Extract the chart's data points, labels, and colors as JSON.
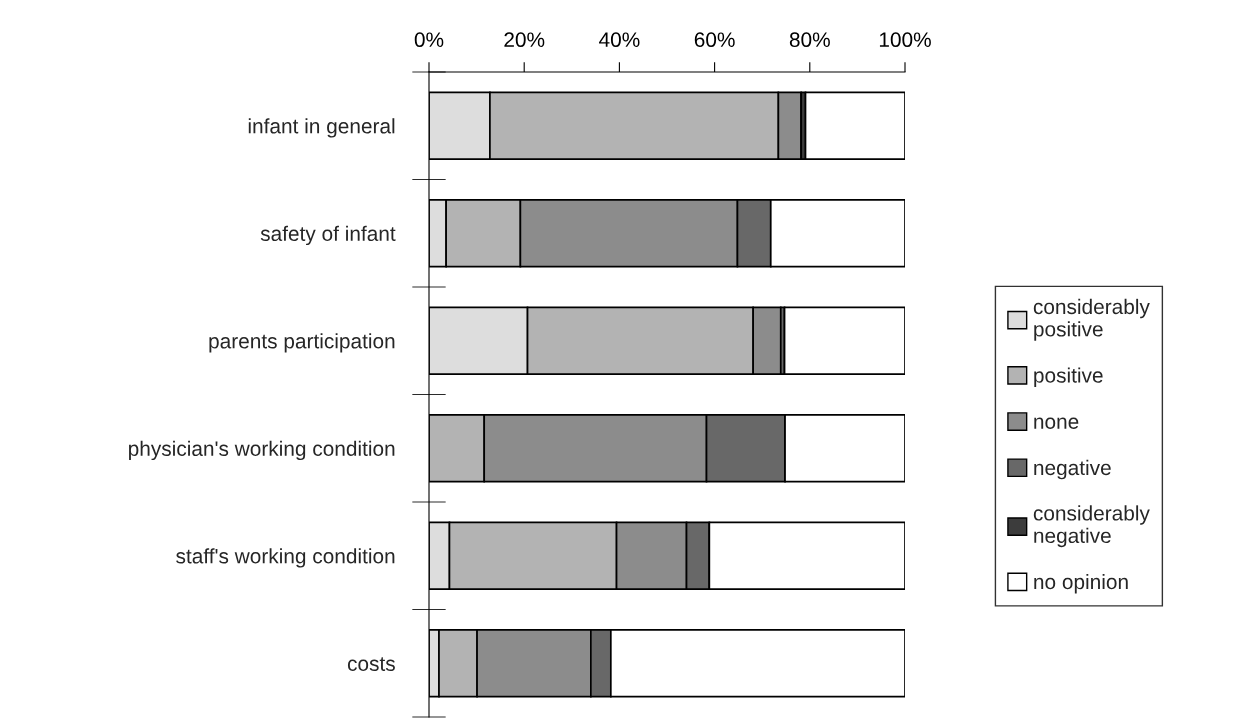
{
  "chart_data": {
    "type": "bar",
    "orientation": "horizontal",
    "stacked": true,
    "categories": [
      "infant in general",
      "safety of infant",
      "parents participation",
      "physician's working condition",
      "staff's working condition",
      "costs"
    ],
    "series": [
      {
        "name": "considerably\npositive",
        "color": "#dddddd",
        "values": [
          12.8,
          3.6,
          20.7,
          0,
          4.3,
          2.1
        ]
      },
      {
        "name": "positive",
        "color": "#b3b3b3",
        "values": [
          60.6,
          15.6,
          47.4,
          11.6,
          35.1,
          8.0
        ]
      },
      {
        "name": "none",
        "color": "#8c8c8c",
        "values": [
          4.8,
          45.6,
          5.8,
          46.7,
          14.7,
          23.9
        ]
      },
      {
        "name": "negative",
        "color": "#686868",
        "values": [
          0,
          7.0,
          0.8,
          16.5,
          4.8,
          4.2
        ]
      },
      {
        "name": "considerably\nnegative",
        "color": "#3c3c3c",
        "values": [
          0.9,
          0,
          0,
          0,
          0,
          0
        ]
      },
      {
        "name": "no opinion",
        "color": "#ffffff",
        "values": [
          20.9,
          28.2,
          25.3,
          25.2,
          41.1,
          61.8
        ]
      }
    ],
    "xlim": [
      0,
      100
    ],
    "xticks": [
      {
        "value": 0,
        "label": "0%"
      },
      {
        "value": 20,
        "label": "20%"
      },
      {
        "value": 40,
        "label": "40%"
      },
      {
        "value": 60,
        "label": "60%"
      },
      {
        "value": 80,
        "label": "80%"
      },
      {
        "value": 100,
        "label": "100%"
      }
    ],
    "grid": false,
    "legend": "right"
  }
}
